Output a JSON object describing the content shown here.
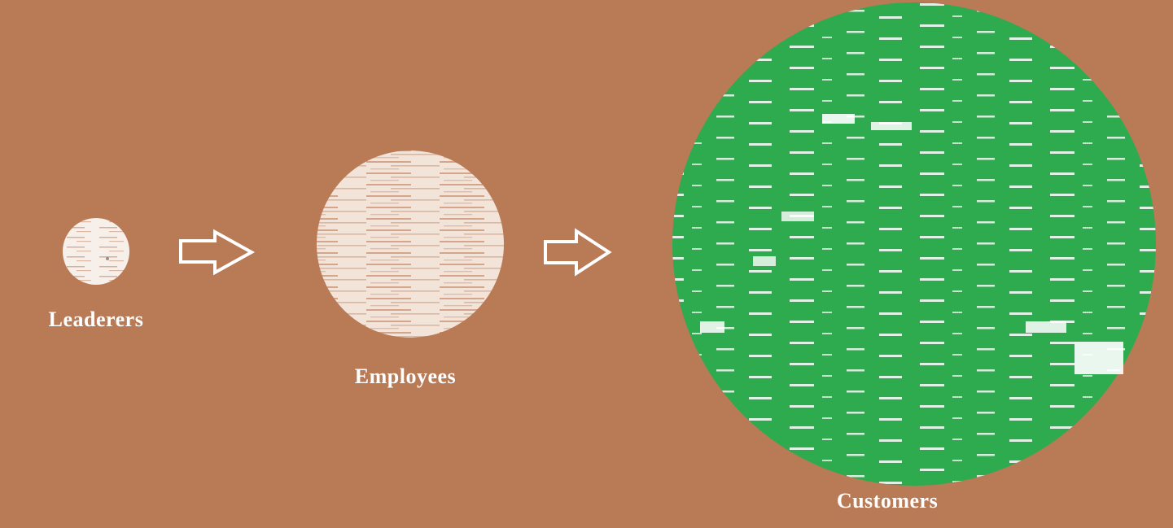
{
  "diagram": {
    "background_color": "#b97a56",
    "nodes": [
      {
        "id": "leaders",
        "label": "Leaderers",
        "fill_color": "#ffffff",
        "texture_color": "#b97a56"
      },
      {
        "id": "employees",
        "label": "Employees",
        "fill_color": "#ffffff",
        "texture_color": "#c48a68"
      },
      {
        "id": "customers",
        "label": "Customers",
        "fill_color": "#2eaa4f",
        "texture_color": "#ffffff"
      }
    ],
    "arrows": [
      {
        "from": "leaders",
        "to": "employees",
        "icon": "right-arrow-icon",
        "color": "#ffffff"
      },
      {
        "from": "employees",
        "to": "customers",
        "icon": "right-arrow-icon",
        "color": "#ffffff"
      }
    ]
  }
}
